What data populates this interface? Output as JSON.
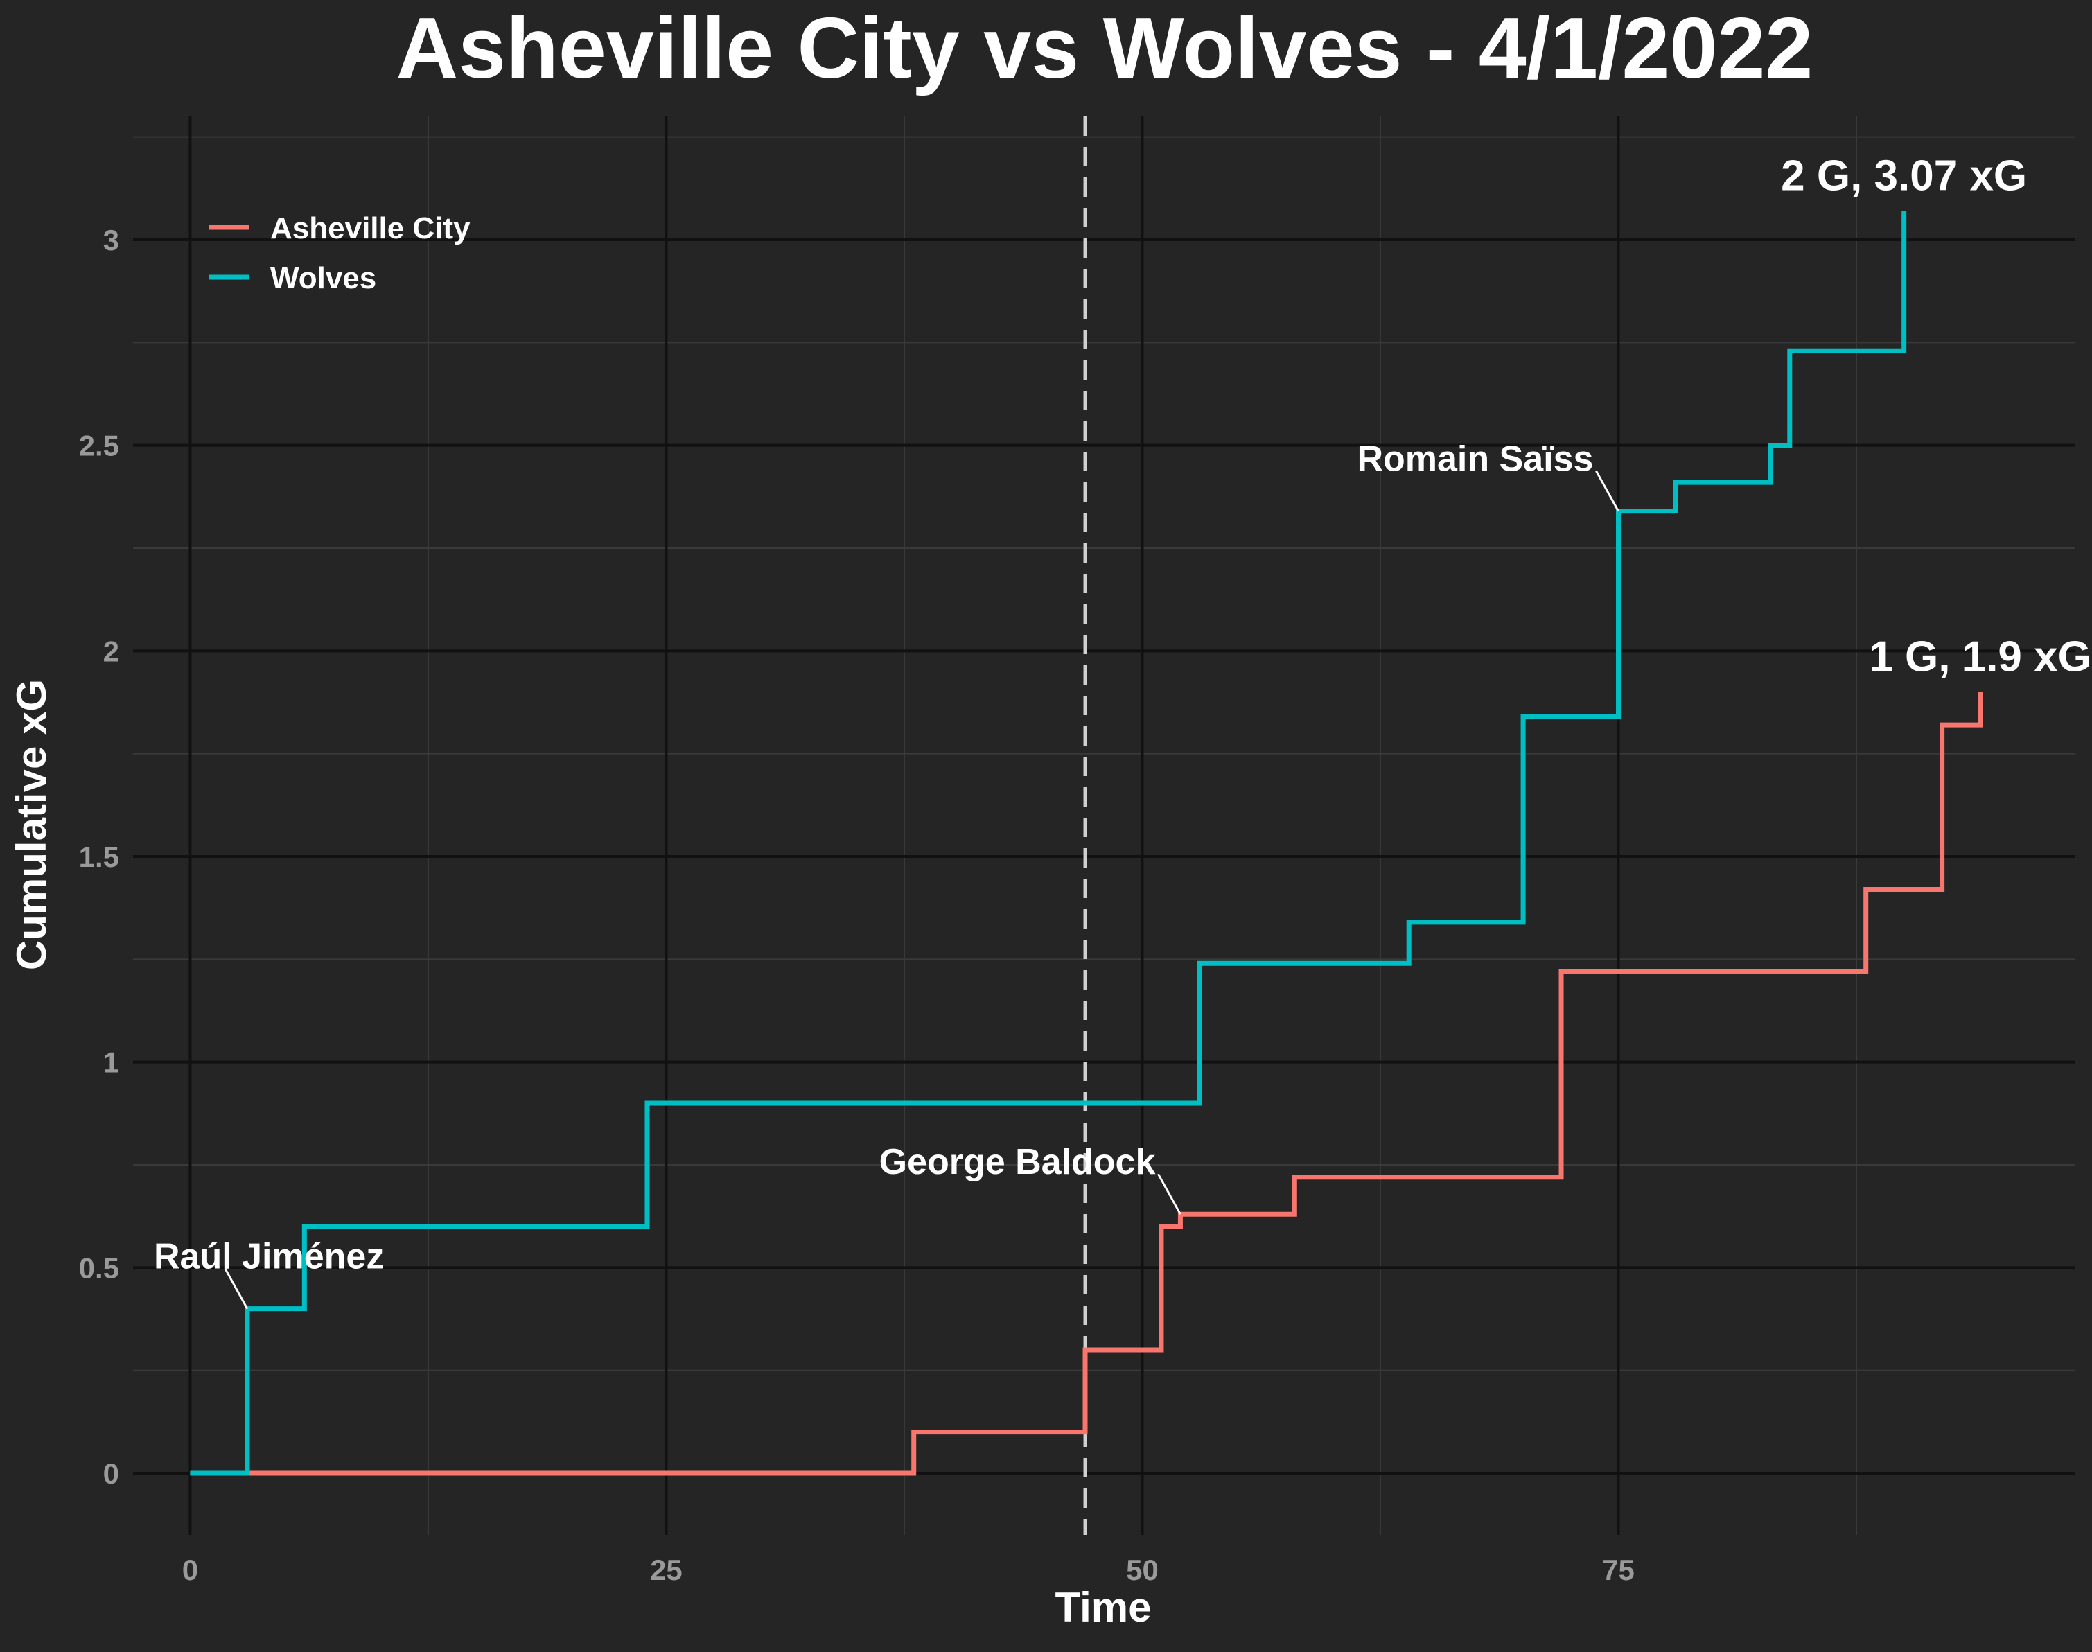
{
  "chart_data": {
    "type": "line",
    "step": true,
    "title": "Asheville City vs Wolves - 4/1/2022",
    "xlabel": "Time",
    "ylabel": "Cumulative xG",
    "xlim": [
      -3,
      99
    ],
    "ylim": [
      -0.15,
      3.3
    ],
    "x_ticks": [
      0,
      25,
      50,
      75
    ],
    "x_tick_labels": [
      "0",
      "25",
      "50",
      "75"
    ],
    "y_ticks": [
      0,
      0.5,
      1,
      1.5,
      2,
      2.5,
      3
    ],
    "y_tick_labels": [
      "0",
      "0.5",
      "1",
      "1.5",
      "2",
      "2.5",
      "3"
    ],
    "grid": true,
    "legend_position": "top-left",
    "halftime_line_x": 47,
    "series": [
      {
        "name": "Asheville City",
        "color": "#f8766d",
        "x": [
          0,
          38,
          47,
          51,
          52,
          58,
          72,
          88,
          92,
          94
        ],
        "y": [
          0,
          0.1,
          0.3,
          0.6,
          0.63,
          0.72,
          1.22,
          1.42,
          1.82,
          1.9
        ],
        "end_label": "1 G, 1.9 xG",
        "goal_annotations": [
          {
            "label": "George Baldock",
            "x": 52,
            "y": 0.63
          }
        ]
      },
      {
        "name": "Wolves",
        "color": "#00bfc4",
        "x": [
          0,
          3,
          6,
          24,
          53,
          64,
          70,
          75,
          78,
          83,
          84,
          90
        ],
        "y": [
          0,
          0.4,
          0.6,
          0.9,
          1.24,
          1.34,
          1.84,
          2.34,
          2.41,
          2.5,
          2.73,
          3.07
        ],
        "end_label": "2 G, 3.07 xG",
        "goal_annotations": [
          {
            "label": "Raúl Jiménez",
            "x": 3,
            "y": 0.4
          },
          {
            "label": "Romain Saïss",
            "x": 75,
            "y": 2.34
          }
        ]
      }
    ]
  }
}
